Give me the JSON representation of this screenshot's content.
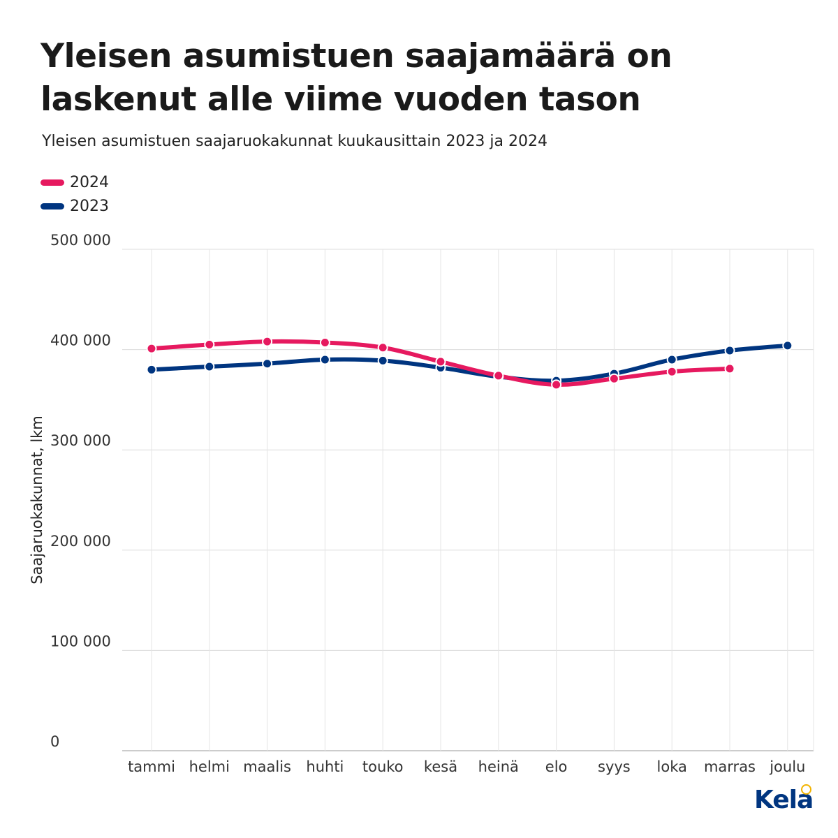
{
  "title": "Yleisen asumistuen saajamäärä on laskenut alle viime vuoden tason",
  "subtitle": "Yleisen asumistuen saajaruokakunnat kuukausittain 2023 ja 2024",
  "logo_text": "Kela",
  "chart_data": {
    "type": "line",
    "title": "Yleisen asumistuen saajamäärä on laskenut alle viime vuoden tason",
    "subtitle": "Yleisen asumistuen saajaruokakunnat kuukausittain 2023 ja 2024",
    "xlabel": "",
    "ylabel": "Saajaruokakunnat, lkm",
    "ylim": [
      0,
      500000
    ],
    "yticks": [
      0,
      100000,
      200000,
      300000,
      400000,
      500000
    ],
    "ytick_labels": [
      "0",
      "100 000",
      "200 000",
      "300 000",
      "400 000",
      "500 000"
    ],
    "categories": [
      "tammi",
      "helmi",
      "maalis",
      "huhti",
      "touko",
      "kesä",
      "heinä",
      "elo",
      "syys",
      "loka",
      "marras",
      "joulu"
    ],
    "grid": true,
    "legend_position": "top-left",
    "series": [
      {
        "name": "2024",
        "color": "#e6195f",
        "values": [
          401000,
          405000,
          408000,
          407000,
          402000,
          388000,
          374000,
          365000,
          371000,
          378000,
          381000,
          null
        ]
      },
      {
        "name": "2023",
        "color": "#003580",
        "values": [
          380000,
          383000,
          386000,
          390000,
          389000,
          382000,
          373000,
          369000,
          376000,
          390000,
          399000,
          404000
        ]
      }
    ]
  }
}
